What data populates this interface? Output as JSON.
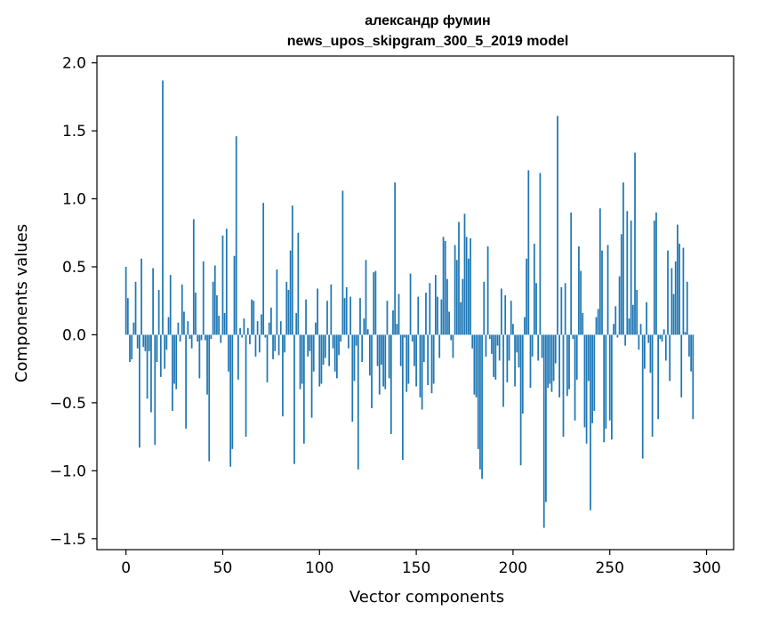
{
  "chart_data": {
    "type": "bar",
    "title": "александр фумин",
    "subtitle": "news_upos_skipgram_300_5_2019 model",
    "xlabel": "Vector components",
    "ylabel": "Components values",
    "xlim": [
      -15,
      314
    ],
    "ylim": [
      -1.58,
      2.05
    ],
    "xticks": [
      0,
      50,
      100,
      150,
      200,
      250,
      300
    ],
    "yticks": [
      -1.5,
      -1.0,
      -0.5,
      0.0,
      0.5,
      1.0,
      1.5,
      2.0
    ],
    "xtick_labels": [
      "0",
      "50",
      "100",
      "150",
      "200",
      "250",
      "300"
    ],
    "ytick_labels": [
      "−1.5",
      "−1.0",
      "−0.5",
      "0.0",
      "0.5",
      "1.0",
      "1.5",
      "2.0"
    ],
    "bar_color": "#1f77b4",
    "grid": false,
    "values": [
      0.5,
      0.27,
      -0.2,
      -0.18,
      0.09,
      0.39,
      -0.1,
      -0.83,
      0.56,
      -0.09,
      -0.12,
      -0.47,
      -0.12,
      -0.57,
      0.49,
      -0.81,
      -0.2,
      0.33,
      -0.31,
      1.87,
      -0.25,
      -0.11,
      0.13,
      0.44,
      -0.56,
      -0.36,
      -0.4,
      0.09,
      -0.05,
      0.37,
      0.17,
      -0.69,
      0.1,
      -0.03,
      -0.1,
      0.85,
      0.31,
      -0.05,
      -0.32,
      -0.04,
      0.54,
      -0.04,
      -0.44,
      -0.93,
      -0.03,
      0.39,
      0.51,
      0.29,
      0.14,
      -0.06,
      0.73,
      0.16,
      0.78,
      -0.27,
      -0.97,
      -0.84,
      0.58,
      1.46,
      -0.33,
      0.05,
      -0.02,
      0.12,
      -0.75,
      0.05,
      -0.07,
      0.26,
      0.25,
      -0.16,
      0.1,
      -0.13,
      0.15,
      0.97,
      -0.02,
      -0.35,
      0.09,
      0.2,
      -0.18,
      -0.12,
      0.48,
      -0.15,
      0.1,
      -0.6,
      -0.13,
      0.39,
      0.33,
      0.62,
      0.95,
      -0.95,
      0.16,
      0.75,
      -0.4,
      -0.36,
      -0.8,
      0.26,
      -0.16,
      -0.12,
      -0.61,
      -0.27,
      0.09,
      0.34,
      -0.38,
      -0.36,
      -0.22,
      -0.17,
      0.25,
      -0.23,
      0.37,
      -0.1,
      -0.27,
      -0.32,
      -0.15,
      -0.05,
      1.06,
      0.27,
      0.35,
      -0.1,
      0.28,
      -0.64,
      -0.34,
      -0.08,
      -0.99,
      0.27,
      -0.2,
      0.12,
      0.55,
      0.04,
      -0.3,
      -0.54,
      0.46,
      0.47,
      -0.23,
      -0.44,
      -0.22,
      -0.38,
      -0.4,
      0.25,
      -0.32,
      -0.73,
      0.18,
      1.12,
      0.08,
      0.3,
      -0.23,
      -0.92,
      -0.02,
      -0.42,
      -0.36,
      0.45,
      -0.05,
      -0.23,
      -0.38,
      0.28,
      -0.46,
      -0.55,
      -0.2,
      0.31,
      -0.37,
      0.38,
      -0.43,
      -0.36,
      0.44,
      0.28,
      -0.17,
      0.26,
      0.72,
      0.69,
      0.41,
      0.17,
      -0.04,
      -0.17,
      0.66,
      0.55,
      0.83,
      0.24,
      0.41,
      0.89,
      0.72,
      0.56,
      0.71,
      -0.1,
      -0.44,
      -0.46,
      -0.84,
      -0.99,
      -1.06,
      0.39,
      -0.16,
      0.65,
      -0.03,
      -0.14,
      -0.31,
      -0.33,
      -0.08,
      -0.19,
      0.34,
      -0.53,
      0.29,
      -0.35,
      -0.19,
      0.25,
      0.08,
      -0.38,
      -0.13,
      -0.24,
      -0.96,
      -0.58,
      0.13,
      0.56,
      1.21,
      -0.39,
      -0.16,
      0.67,
      0.38,
      -0.19,
      1.19,
      -0.17,
      -1.42,
      -1.23,
      -0.39,
      -0.36,
      -0.42,
      -0.34,
      -0.21,
      1.61,
      -0.46,
      0.35,
      -0.75,
      0.38,
      -0.45,
      -0.4,
      0.9,
      -0.03,
      -0.63,
      -0.33,
      0.65,
      0.47,
      0.16,
      -0.68,
      -0.8,
      -0.34,
      -1.29,
      -0.65,
      -0.56,
      0.13,
      0.19,
      0.93,
      0.62,
      -0.79,
      -0.69,
      0.66,
      -0.63,
      -0.77,
      0.08,
      0.21,
      -0.02,
      0.43,
      0.74,
      1.12,
      -0.08,
      0.91,
      0.12,
      0.84,
      0.22,
      1.34,
      0.33,
      -0.11,
      0.08,
      -0.91,
      -0.25,
      0.24,
      -0.06,
      -0.28,
      -0.75,
      0.84,
      0.9,
      -0.62,
      -0.03,
      -0.05,
      0.04,
      -0.19,
      0.62,
      -0.34,
      0.49,
      0.3,
      0.54,
      0.81,
      0.67,
      -0.46,
      0.64,
      0.02,
      0.39,
      -0.16,
      -0.27,
      -0.62
    ]
  }
}
